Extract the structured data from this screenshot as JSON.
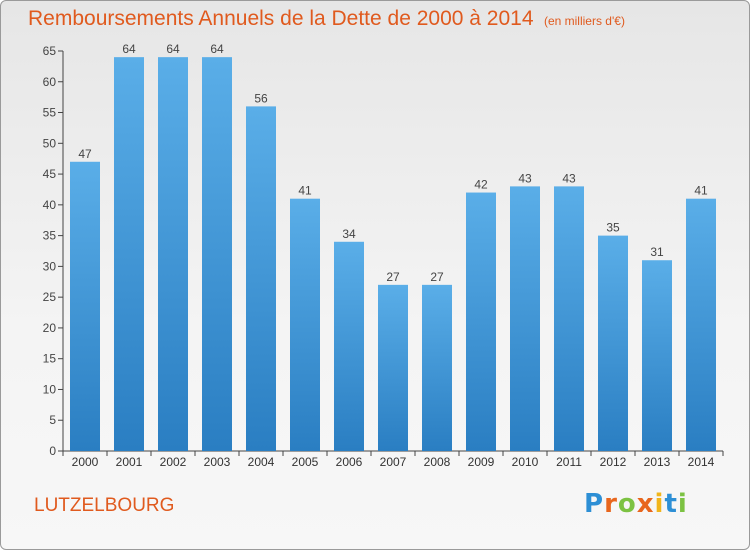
{
  "title": "Remboursements Annuels de la Dette de 2000 à 2014",
  "unit": "(en milliers d'€)",
  "commune": "LUTZELBOURG",
  "logo_text": "Proxiti",
  "colors": {
    "title": "#e05a1e",
    "bar_top": "#5aaee8",
    "bar_bottom": "#2a7ec2",
    "axis": "#444444"
  },
  "chart_data": {
    "type": "bar",
    "categories": [
      "2000",
      "2001",
      "2002",
      "2003",
      "2004",
      "2005",
      "2006",
      "2007",
      "2008",
      "2009",
      "2010",
      "2011",
      "2012",
      "2013",
      "2014"
    ],
    "values": [
      47,
      64,
      64,
      64,
      56,
      41,
      34,
      27,
      27,
      42,
      43,
      43,
      35,
      31,
      41
    ],
    "ylim": [
      0,
      65
    ],
    "yticks": [
      0,
      5,
      10,
      15,
      20,
      25,
      30,
      35,
      40,
      45,
      50,
      55,
      60,
      65
    ],
    "grid": false,
    "data_labels": true
  }
}
